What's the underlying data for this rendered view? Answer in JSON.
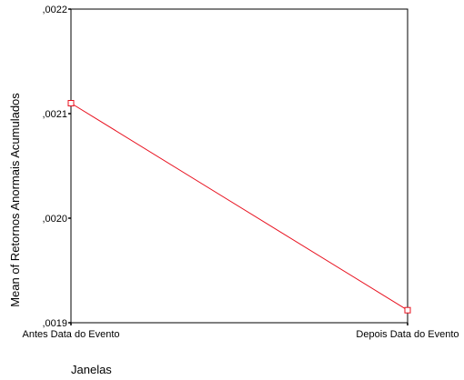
{
  "chart_data": {
    "type": "line",
    "title": "",
    "xlabel": "Janelas",
    "ylabel": "Mean of Retornos Anormais Acumulados",
    "categories": [
      "Antes Data do Evento",
      "Depois Data do Evento"
    ],
    "y_tick_labels": [
      ",0019",
      ",0020",
      ",0021",
      ",0022"
    ],
    "y_ticks": [
      0.0019,
      0.002,
      0.0021,
      0.0022
    ],
    "ylim": [
      0.0019,
      0.0022
    ],
    "grid": false,
    "series": [
      {
        "values": [
          0.00211,
          0.001912
        ],
        "color": "#e8101e",
        "marker": "square"
      }
    ]
  }
}
